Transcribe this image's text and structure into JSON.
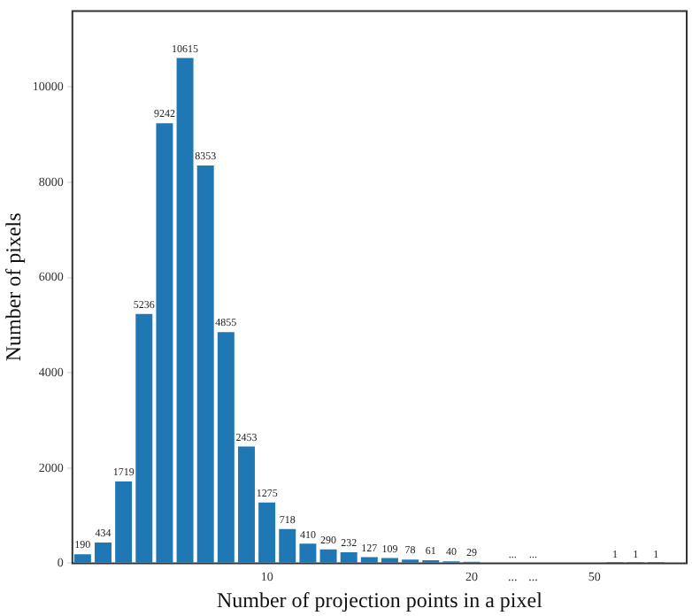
{
  "chart_data": {
    "type": "bar",
    "xlabel": "Number of projection points in a pixel",
    "ylabel": "Number of pixels",
    "categories": [
      null,
      null,
      null,
      null,
      null,
      null,
      null,
      null,
      null,
      "10",
      null,
      null,
      null,
      null,
      null,
      null,
      null,
      null,
      null,
      "20",
      null,
      "...",
      "...",
      null,
      null,
      "50",
      null,
      null,
      null,
      null
    ],
    "values": [
      190,
      434,
      1719,
      5236,
      9242,
      10615,
      8353,
      4855,
      2453,
      1275,
      718,
      410,
      290,
      232,
      127,
      109,
      78,
      61,
      40,
      29,
      null,
      null,
      null,
      null,
      null,
      null,
      1,
      1,
      1,
      null
    ],
    "value_labels": [
      "190",
      "434",
      "1719",
      "5236",
      "9242",
      "10615",
      "8353",
      "4855",
      "2453",
      "1275",
      "718",
      "410",
      "290",
      "232",
      "127",
      "109",
      "78",
      "61",
      "40",
      "29",
      null,
      "...",
      "...",
      null,
      null,
      null,
      "1",
      "1",
      "1",
      null
    ],
    "color": "#1f77b4",
    "ylim": [
      0,
      11600
    ],
    "yticks": [
      0,
      2000,
      4000,
      6000,
      8000,
      10000
    ],
    "grid": false,
    "legend": false
  }
}
